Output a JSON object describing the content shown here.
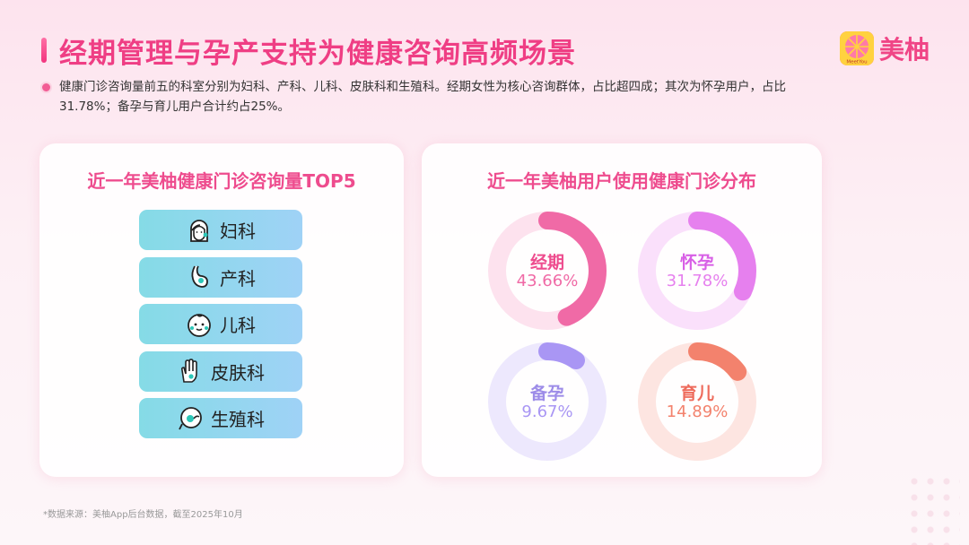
{
  "header": {
    "title": "经期管理与孕产支持为健康咨询高频场景",
    "logo_text": "美柚",
    "logo_sub": "MeetYou"
  },
  "summary": "健康门诊咨询量前五的科室分别为妇科、产科、儿科、皮肤科和生殖科。经期女性为核心咨询群体，占比超四成；其次为怀孕用户，占比31.78%；备孕与育儿用户合计约占25%。",
  "left_card": {
    "title": "近一年美柚健康门诊咨询量TOP5",
    "items": [
      {
        "label": "妇科",
        "icon": "woman-face-icon"
      },
      {
        "label": "产科",
        "icon": "pregnant-icon"
      },
      {
        "label": "儿科",
        "icon": "baby-face-icon"
      },
      {
        "label": "皮肤科",
        "icon": "hand-icon"
      },
      {
        "label": "生殖科",
        "icon": "reproductive-icon"
      }
    ]
  },
  "right_card": {
    "title": "近一年美柚用户使用健康门诊分布"
  },
  "chart_data": {
    "type": "pie",
    "title": "近一年美柚用户使用健康门诊分布",
    "categories": [
      "经期",
      "怀孕",
      "备孕",
      "育儿"
    ],
    "values": [
      43.66,
      31.78,
      9.67,
      14.89
    ],
    "labels": [
      "43.66%",
      "31.78%",
      "9.67%",
      "14.89%"
    ],
    "colors": [
      "#f06aa6",
      "#e680ee",
      "#a996f4",
      "#f3826d"
    ],
    "track_colors": [
      "#fde2ee",
      "#fae0fb",
      "#ede8fd",
      "#fde5e1"
    ],
    "name_colors": [
      "#ee4c8e",
      "#d85fe6",
      "#9d8ce8",
      "#ee6b5c"
    ]
  },
  "footnote": "*数据来源：美柚App后台数据，截至2025年10月"
}
